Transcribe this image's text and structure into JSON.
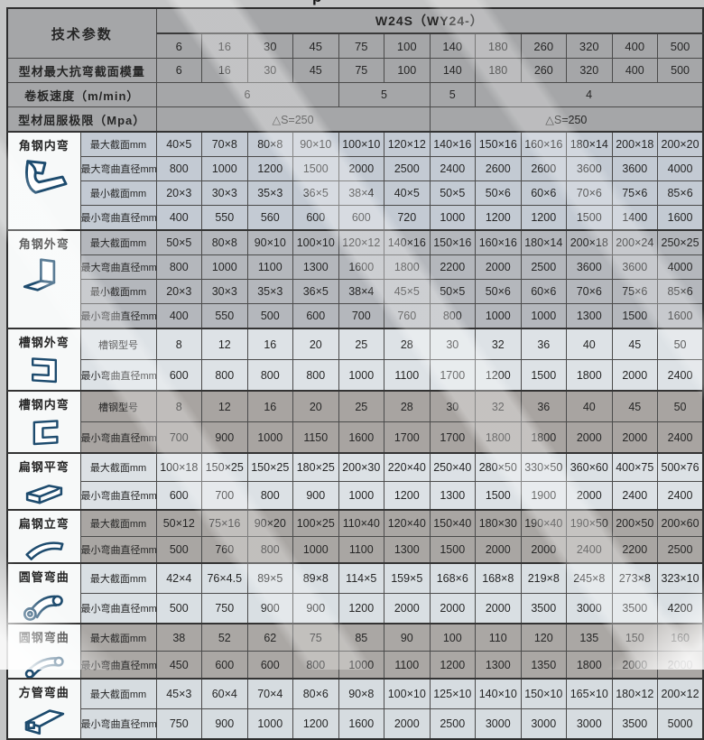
{
  "page": {
    "cropped_fragment": "p"
  },
  "colors": {
    "page_bg": "#c5c6c6",
    "header_bg": "#a5a6a8",
    "icon_cell_bg": "#f7f9f9",
    "icon_stroke": "#1d4b6e",
    "grid_line": "#4b4b4b",
    "section_tones": [
      "#c3cad3",
      "#b4b7bc",
      "#dde2e6",
      "#a8a4a1",
      "#dce1e5",
      "#a9a6a3",
      "#d9dfe3",
      "#aaa7a4",
      "#d6dce0"
    ]
  },
  "header": {
    "param_label": "技术参数",
    "model_label": "W24S（WY24-）",
    "columns": [
      "6",
      "16",
      "30",
      "45",
      "75",
      "100",
      "140",
      "180",
      "260",
      "320",
      "400",
      "500"
    ],
    "rows": [
      {
        "label": "型材最大抗弯截面模量",
        "type": "values",
        "values": [
          "6",
          "16",
          "30",
          "45",
          "75",
          "100",
          "140",
          "180",
          "260",
          "320",
          "400",
          "500"
        ]
      },
      {
        "label": "卷板速度（m/min）",
        "type": "spans",
        "spans": [
          {
            "text": "6",
            "cols": 4
          },
          {
            "text": "5",
            "cols": 2
          },
          {
            "text": "5",
            "cols": 1
          },
          {
            "text": "4",
            "cols": 5
          }
        ]
      },
      {
        "label": "型材屈服极限（Mpa）",
        "type": "spans",
        "spans": [
          {
            "text": "△S=250",
            "cols": 6
          },
          {
            "text": "△S=250",
            "cols": 6
          }
        ]
      }
    ]
  },
  "sections": [
    {
      "name": "角钢内弯",
      "icon": "angle-inner-bend-icon",
      "rows": [
        {
          "label": "最大截面mm",
          "values": [
            "40×5",
            "70×8",
            "80×8",
            "90×10",
            "100×10",
            "120×12",
            "140×16",
            "150×16",
            "160×16",
            "180×14",
            "200×18",
            "200×20"
          ]
        },
        {
          "label": "最大弯曲直径mm",
          "values": [
            "800",
            "1000",
            "1200",
            "1500",
            "2000",
            "2500",
            "2400",
            "2600",
            "2600",
            "3600",
            "3600",
            "4000"
          ]
        },
        {
          "label": "最小截面mm",
          "values": [
            "20×3",
            "30×3",
            "35×3",
            "36×5",
            "38×4",
            "40×5",
            "50×5",
            "50×6",
            "60×6",
            "70×6",
            "75×6",
            "85×6"
          ]
        },
        {
          "label": "最小弯曲直径mm",
          "values": [
            "400",
            "550",
            "560",
            "600",
            "600",
            "720",
            "1000",
            "1200",
            "1200",
            "1500",
            "1400",
            "1600"
          ]
        }
      ]
    },
    {
      "name": "角钢外弯",
      "icon": "angle-outer-bend-icon",
      "rows": [
        {
          "label": "最大截面mm",
          "values": [
            "50×5",
            "80×8",
            "90×10",
            "100×10",
            "120×12",
            "140×16",
            "150×16",
            "160×16",
            "180×14",
            "200×18",
            "200×24",
            "250×25"
          ]
        },
        {
          "label": "最大弯曲直径mm",
          "values": [
            "800",
            "1000",
            "1100",
            "1300",
            "1600",
            "1800",
            "2200",
            "2000",
            "2500",
            "3600",
            "3600",
            "4000"
          ]
        },
        {
          "label": "最小截面mm",
          "values": [
            "20×3",
            "30×3",
            "35×3",
            "36×5",
            "38×4",
            "45×5",
            "50×5",
            "50×6",
            "60×6",
            "70×6",
            "75×6",
            "85×6"
          ]
        },
        {
          "label": "最小弯曲直径mm",
          "values": [
            "400",
            "550",
            "500",
            "600",
            "700",
            "760",
            "800",
            "1000",
            "1000",
            "1300",
            "1500",
            "1600"
          ]
        }
      ]
    },
    {
      "name": "槽钢外弯",
      "icon": "channel-outer-bend-icon",
      "rows": [
        {
          "label": "槽钢型号",
          "values": [
            "8",
            "12",
            "16",
            "20",
            "25",
            "28",
            "30",
            "32",
            "36",
            "40",
            "45",
            "50"
          ]
        },
        {
          "label": "最小弯曲直径mm",
          "values": [
            "600",
            "800",
            "800",
            "800",
            "1000",
            "1100",
            "1700",
            "1200",
            "1500",
            "1800",
            "2000",
            "2400"
          ]
        }
      ]
    },
    {
      "name": "槽钢内弯",
      "icon": "channel-inner-bend-icon",
      "rows": [
        {
          "label": "槽钢型号",
          "values": [
            "8",
            "12",
            "16",
            "20",
            "25",
            "28",
            "30",
            "32",
            "36",
            "40",
            "45",
            "50"
          ]
        },
        {
          "label": "最小弯曲直径mm",
          "values": [
            "700",
            "900",
            "1000",
            "1150",
            "1600",
            "1700",
            "1700",
            "1800",
            "1800",
            "2000",
            "2000",
            "2400"
          ]
        }
      ]
    },
    {
      "name": "扁钢平弯",
      "icon": "flat-steel-flat-bend-icon",
      "rows": [
        {
          "label": "最大截面mm",
          "values": [
            "100×18",
            "150×25",
            "150×25",
            "180×25",
            "200×30",
            "220×40",
            "250×40",
            "280×50",
            "330×50",
            "360×60",
            "400×75",
            "500×76"
          ]
        },
        {
          "label": "最小弯曲直径mm",
          "values": [
            "600",
            "700",
            "800",
            "900",
            "1000",
            "1200",
            "1300",
            "1500",
            "1900",
            "2000",
            "2400",
            "2400"
          ]
        }
      ]
    },
    {
      "name": "扁钢立弯",
      "icon": "flat-steel-edge-bend-icon",
      "rows": [
        {
          "label": "最大截面mm",
          "values": [
            "50×12",
            "75×16",
            "90×20",
            "100×25",
            "110×40",
            "120×40",
            "150×40",
            "180×30",
            "190×40",
            "190×50",
            "200×50",
            "200×60"
          ]
        },
        {
          "label": "最小弯曲直径mm",
          "values": [
            "500",
            "760",
            "800",
            "1000",
            "1100",
            "1300",
            "1500",
            "2000",
            "2000",
            "2400",
            "2200",
            "2500"
          ]
        }
      ]
    },
    {
      "name": "圆管弯曲",
      "icon": "round-tube-bend-icon",
      "rows": [
        {
          "label": "最大截面mm",
          "values": [
            "42×4",
            "76×4.5",
            "89×5",
            "89×8",
            "114×5",
            "159×5",
            "168×6",
            "168×8",
            "219×8",
            "245×8",
            "273×8",
            "323×10"
          ]
        },
        {
          "label": "最小弯曲直径mm",
          "values": [
            "500",
            "750",
            "900",
            "900",
            "1200",
            "2000",
            "2000",
            "2000",
            "3500",
            "3000",
            "3500",
            "4200"
          ]
        }
      ]
    },
    {
      "name": "圆钢弯曲",
      "icon": "round-bar-bend-icon",
      "rows": [
        {
          "label": "最大截面mm",
          "values": [
            "38",
            "52",
            "62",
            "75",
            "85",
            "90",
            "100",
            "110",
            "120",
            "135",
            "150",
            "160"
          ]
        },
        {
          "label": "最小弯曲直径mm",
          "values": [
            "450",
            "600",
            "600",
            "800",
            "1000",
            "1100",
            "1200",
            "1300",
            "1350",
            "1800",
            "2000",
            "2000"
          ]
        }
      ]
    },
    {
      "name": "方管弯曲",
      "icon": "square-tube-bend-icon",
      "rows": [
        {
          "label": "最大截面mm",
          "values": [
            "45×3",
            "60×4",
            "70×4",
            "80×6",
            "90×8",
            "100×10",
            "125×10",
            "140×10",
            "150×10",
            "165×10",
            "180×12",
            "200×12"
          ]
        },
        {
          "label": "最小弯曲直径mm",
          "values": [
            "750",
            "900",
            "1000",
            "1200",
            "1600",
            "2000",
            "2500",
            "3000",
            "3000",
            "3000",
            "3500",
            "5000"
          ]
        }
      ]
    }
  ]
}
